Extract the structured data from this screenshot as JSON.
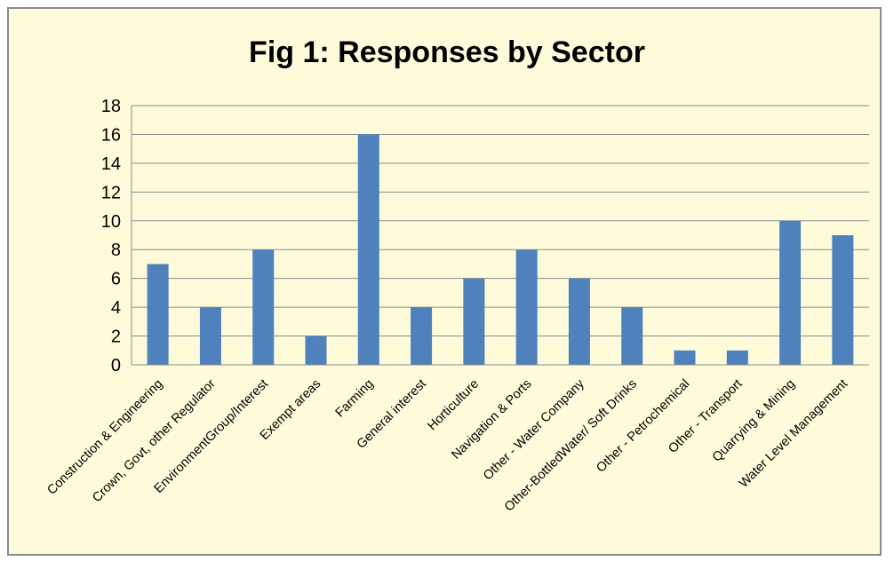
{
  "chart_data": {
    "type": "bar",
    "title": "Fig 1: Responses by Sector",
    "xlabel": "",
    "ylabel": "",
    "ylim": [
      0,
      18
    ],
    "yticks": [
      "0",
      "2",
      "4",
      "6",
      "8",
      "10",
      "12",
      "14",
      "16",
      "18"
    ],
    "grid": true,
    "legend": "none",
    "categories": [
      "Construction & Engineering",
      "Crown, Govt, other Regulator",
      "EnvironmentGroup/Interest",
      "Exempt areas",
      "Farming",
      "General interest",
      "Horticulture",
      "Navigation & Ports",
      "Other - Water Company",
      "Other-BottledWater/ Soft Drinks",
      "Other - Petrochemical",
      "Other - Transport",
      "Quarrying & Mining",
      "Water Level Management"
    ],
    "values": [
      7,
      4,
      8,
      2,
      16,
      4,
      6,
      8,
      6,
      4,
      1,
      1,
      10,
      9
    ],
    "colors": {
      "bar": "#4f81bd",
      "background": "#fdfbd9",
      "grid": "#8c8c8c",
      "frame": "#8a8a8a"
    }
  }
}
